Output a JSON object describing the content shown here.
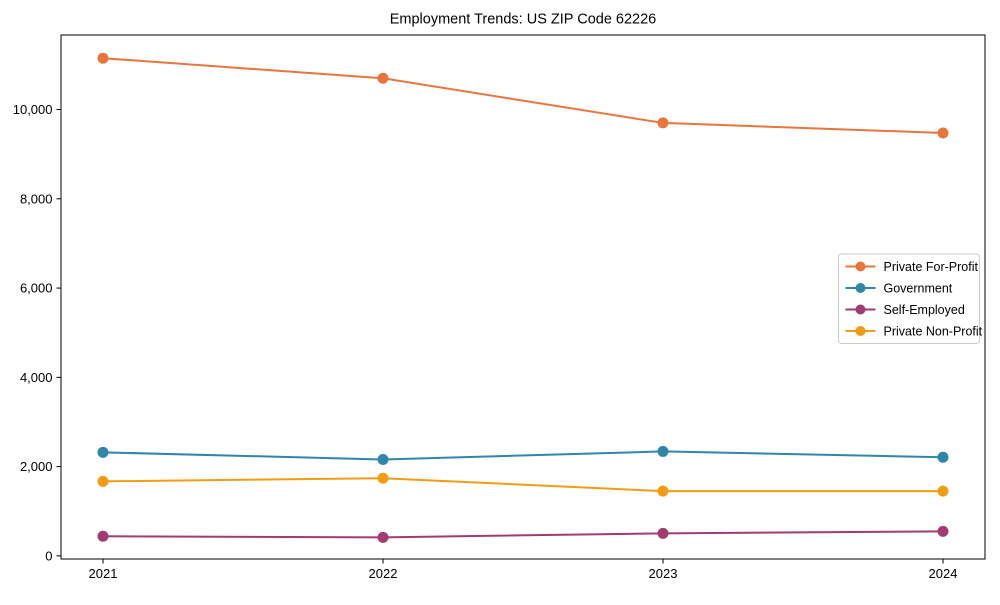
{
  "chart_data": {
    "type": "line",
    "title": "Employment Trends: US ZIP Code 62226",
    "x": [
      "2021",
      "2022",
      "2023",
      "2024"
    ],
    "series": [
      {
        "name": "Private For-Profit",
        "color": "#E8763C",
        "values": [
          11150,
          10700,
          9700,
          9475
        ]
      },
      {
        "name": "Government",
        "color": "#2E86AB",
        "values": [
          2320,
          2160,
          2340,
          2210
        ]
      },
      {
        "name": "Self-Employed",
        "color": "#A23B72",
        "values": [
          440,
          415,
          505,
          550
        ]
      },
      {
        "name": "Private Non-Profit",
        "color": "#F39C12",
        "values": [
          1670,
          1740,
          1450,
          1450
        ]
      }
    ],
    "xlabel": "",
    "ylabel": "",
    "ylim": [
      -70,
      11670
    ],
    "yticks": [
      0,
      2000,
      4000,
      6000,
      8000,
      10000
    ],
    "ytick_labels": [
      "0",
      "2,000",
      "4,000",
      "6,000",
      "8,000",
      "10,000"
    ],
    "grid": false,
    "marker": "circle",
    "legend_position": "center right",
    "axis_color": "#000000",
    "legend_border_color": "#cccccc",
    "background_color": "#ffffff"
  }
}
